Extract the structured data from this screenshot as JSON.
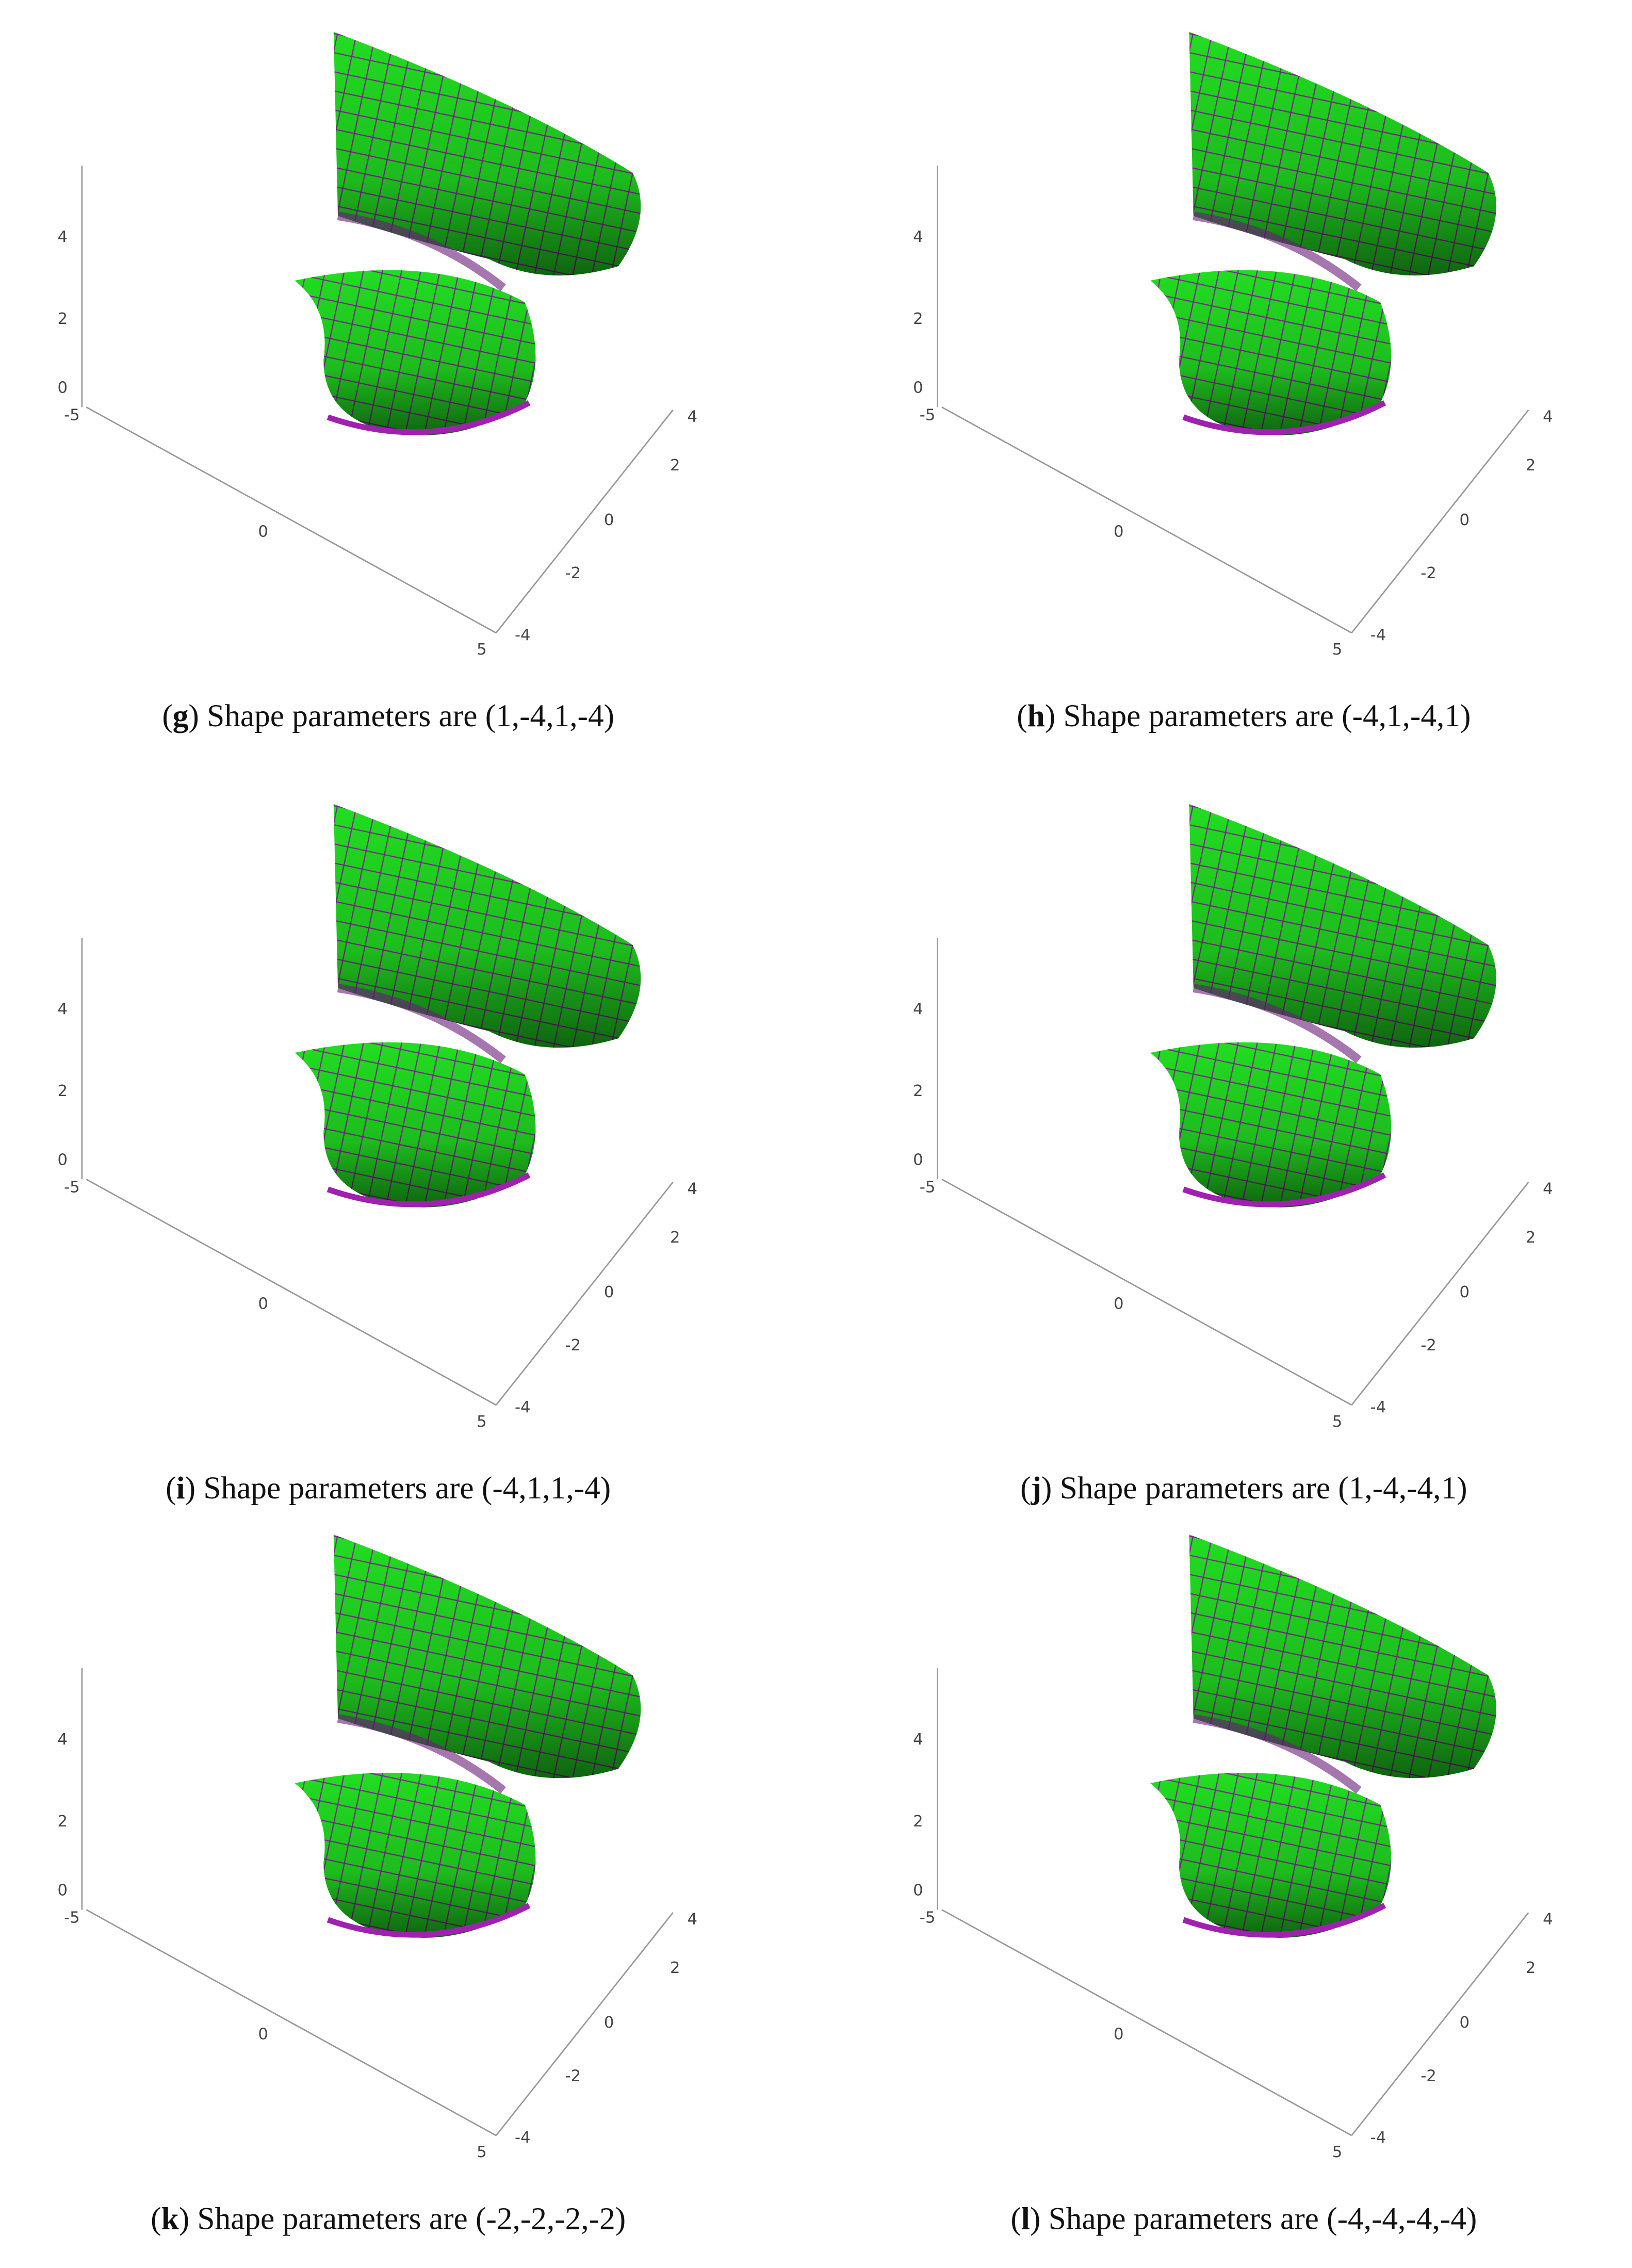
{
  "panels": [
    {
      "caption": [
        "(",
        "g",
        ") Shape parameters are (1,-4,1,-4)"
      ],
      "z_ticks": [
        "0",
        "2",
        "4"
      ],
      "x_ticks": [
        "-5",
        "0",
        "5"
      ],
      "y_ticks": [
        "-4",
        "-2",
        "0",
        "2",
        "4"
      ]
    },
    {
      "caption": [
        "(",
        "h",
        ") Shape parameters are (-4,1,-4,1)"
      ],
      "z_ticks": [
        "0",
        "2",
        "4"
      ],
      "x_ticks": [
        "-5",
        "0",
        "5"
      ],
      "y_ticks": [
        "-4",
        "-2",
        "0",
        "2",
        "4"
      ]
    },
    {
      "caption": [
        "(",
        "i",
        ") Shape parameters are (-4,1,1,-4)"
      ],
      "z_ticks": [
        "0",
        "2",
        "4"
      ],
      "x_ticks": [
        "-5",
        "0",
        "5"
      ],
      "y_ticks": [
        "-4",
        "-2",
        "0",
        "2",
        "4"
      ]
    },
    {
      "caption": [
        "(",
        "j",
        ") Shape parameters are (1,-4,-4,1)"
      ],
      "z_ticks": [
        "0",
        "2",
        "4"
      ],
      "x_ticks": [
        "-5",
        "0",
        "5"
      ],
      "y_ticks": [
        "-4",
        "-2",
        "0",
        "2",
        "4"
      ]
    },
    {
      "caption": [
        "(",
        "k",
        ") Shape parameters are (-2,-2,-2,-2)"
      ],
      "z_ticks": [
        "0",
        "2",
        "4"
      ],
      "x_ticks": [
        "-5",
        "0",
        "5"
      ],
      "y_ticks": [
        "-4",
        "-2",
        "0",
        "2",
        "4"
      ]
    },
    {
      "caption": [
        "(",
        "l",
        ") Shape parameters are (-4,-4,-4,-4)"
      ],
      "z_ticks": [
        "0",
        "2",
        "4"
      ],
      "x_ticks": [
        "-5",
        "0",
        "5"
      ],
      "y_ticks": [
        "-4",
        "-2",
        "0",
        "2",
        "4"
      ]
    }
  ]
}
